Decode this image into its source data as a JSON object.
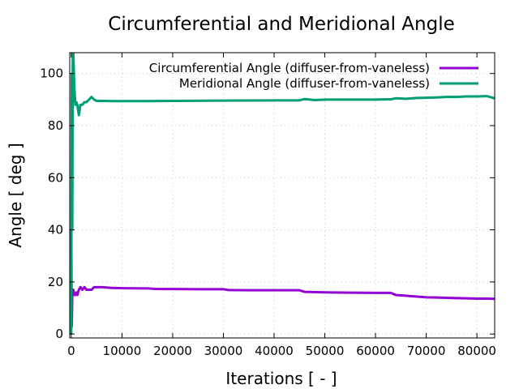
{
  "chart_data": {
    "type": "line",
    "title": "Circumferential and Meridional Angle",
    "xlabel": "Iterations [ - ]",
    "ylabel": "Angle [ deg ]",
    "xlim": [
      -300,
      83500
    ],
    "ylim": [
      -1.5,
      108
    ],
    "grid": true,
    "legend_position": "top-right",
    "xticks": [
      {
        "value": 0,
        "label": "0"
      },
      {
        "value": 10000,
        "label": "10000"
      },
      {
        "value": 20000,
        "label": "20000"
      },
      {
        "value": 30000,
        "label": "30000"
      },
      {
        "value": 40000,
        "label": "40000"
      },
      {
        "value": 50000,
        "label": "50000"
      },
      {
        "value": 60000,
        "label": "60000"
      },
      {
        "value": 70000,
        "label": "70000"
      },
      {
        "value": 80000,
        "label": "80000"
      }
    ],
    "yticks": [
      {
        "value": 0,
        "label": "0"
      },
      {
        "value": 20,
        "label": "20"
      },
      {
        "value": 40,
        "label": "40"
      },
      {
        "value": 60,
        "label": "60"
      },
      {
        "value": 80,
        "label": "80"
      },
      {
        "value": 100,
        "label": "100"
      }
    ],
    "series": [
      {
        "name": "Circumferential Angle (diffuser-from-vaneless)",
        "color": "#9400d3",
        "x": [
          0,
          100,
          200,
          300,
          400,
          600,
          800,
          1000,
          1200,
          1500,
          1800,
          2200,
          2600,
          3000,
          3500,
          4000,
          4500,
          5000,
          6000,
          8000,
          10000,
          15000,
          17000,
          20000,
          25000,
          30000,
          31000,
          35000,
          40000,
          45000,
          46000,
          50000,
          55000,
          60000,
          63000,
          64000,
          66000,
          68000,
          70000,
          72000,
          74000,
          76000,
          78000,
          80000,
          82000,
          83500
        ],
        "y": [
          40,
          3,
          15,
          16,
          17,
          15,
          15,
          16,
          15,
          17,
          18,
          17,
          18,
          17,
          17,
          17,
          18,
          18,
          18,
          17.7,
          17.6,
          17.5,
          17.3,
          17.3,
          17.2,
          17.2,
          16.9,
          16.8,
          16.8,
          16.8,
          16.2,
          16.0,
          15.9,
          15.8,
          15.8,
          15.0,
          14.7,
          14.4,
          14.1,
          14.0,
          13.9,
          13.8,
          13.7,
          13.6,
          13.6,
          13.5
        ]
      },
      {
        "name": "Meridional Angle (diffuser-from-vaneless)",
        "color": "#009e73",
        "x": [
          0,
          100,
          200,
          300,
          400,
          600,
          800,
          1000,
          1200,
          1500,
          1800,
          2200,
          2600,
          3000,
          3500,
          4000,
          4500,
          5000,
          6000,
          8000,
          10000,
          15000,
          20000,
          30000,
          40000,
          45000,
          46000,
          48000,
          50000,
          55000,
          60000,
          63000,
          64000,
          66000,
          68000,
          70000,
          72000,
          74000,
          76000,
          78000,
          80000,
          82000,
          83500
        ],
        "y": [
          0,
          100,
          40,
          108,
          108,
          95,
          88,
          89,
          88,
          84,
          88,
          88,
          89,
          89,
          90,
          91,
          90,
          89.5,
          89.5,
          89.4,
          89.4,
          89.4,
          89.5,
          89.6,
          89.7,
          89.7,
          90.2,
          89.8,
          90.0,
          90.0,
          90.0,
          90.1,
          90.5,
          90.3,
          90.6,
          90.7,
          90.8,
          91.0,
          91.0,
          91.2,
          91.2,
          91.3,
          90.5
        ]
      }
    ]
  }
}
